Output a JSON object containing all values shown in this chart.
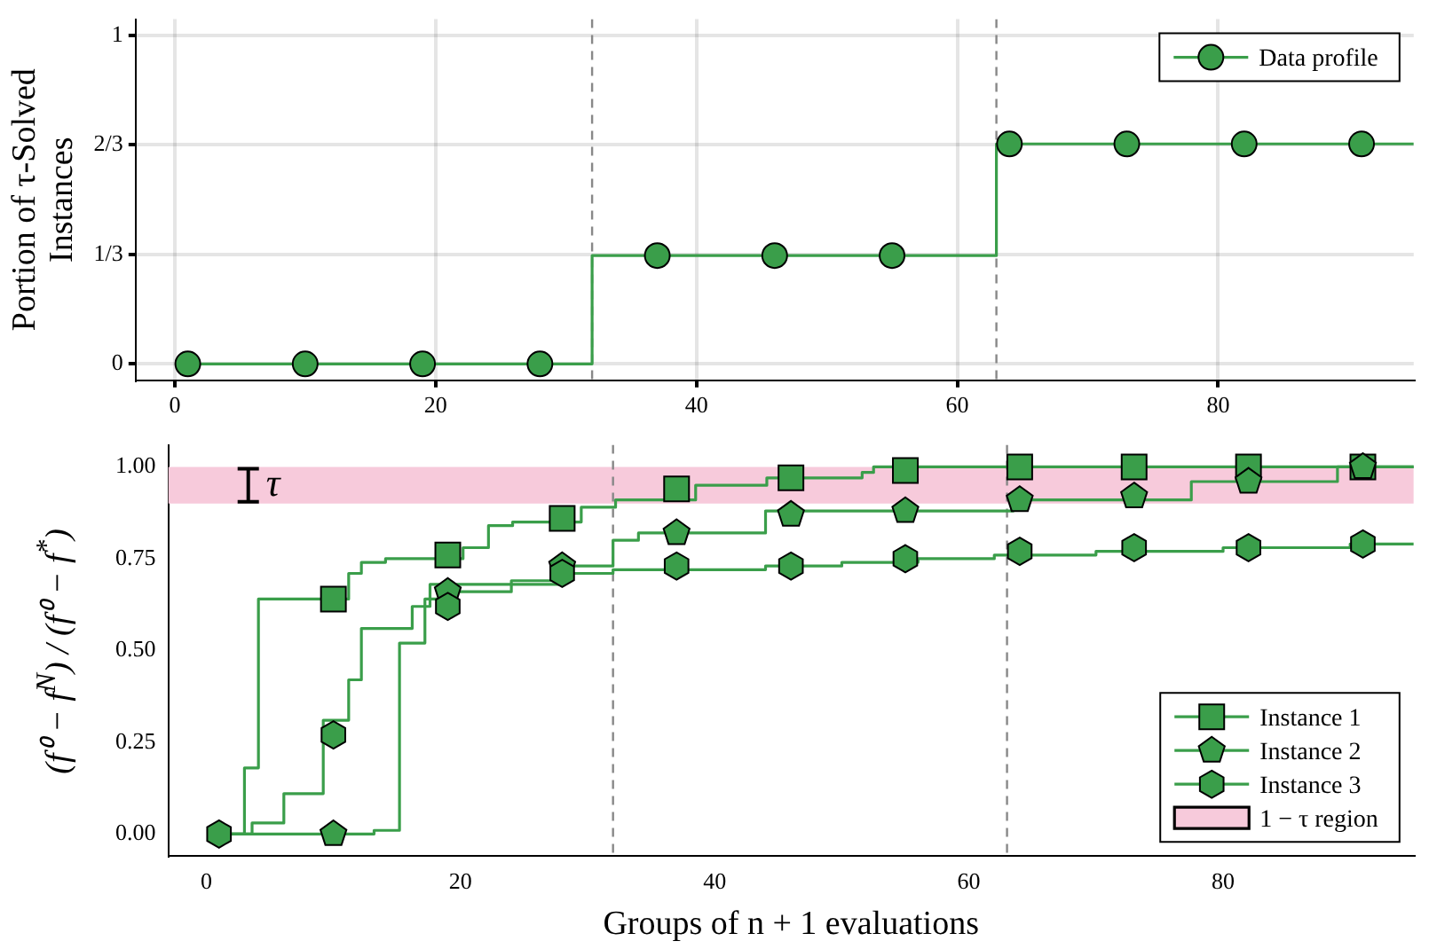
{
  "chart_data": [
    {
      "type": "step",
      "ylabel": "Portion of τ-Solved Instances",
      "xlim": [
        -3,
        95
      ],
      "xticks": [
        0,
        20,
        40,
        60,
        80
      ],
      "ylim": [
        -0.05,
        1.05
      ],
      "yticks": [
        0,
        {
          "value": 0.3333,
          "label": "1/3"
        },
        {
          "value": 0.6667,
          "label": "2/3"
        },
        1
      ],
      "grid": true,
      "legend": "top right",
      "ref_lines": [
        {
          "axis": "x",
          "value": 32,
          "color": "#888888",
          "line_style": "dashed"
        },
        {
          "axis": "x",
          "value": 63,
          "color": "#888888",
          "line_style": "dashed"
        }
      ],
      "series": [
        {
          "color": "#3a9e4a",
          "marker": "none",
          "x": [
            1,
            32,
            63,
            95
          ],
          "values": [
            0,
            0.33,
            0.67,
            0.67
          ]
        },
        {
          "type": "scatter",
          "name": "Data profile",
          "color": "#3a9e4a",
          "marker": "circle",
          "x": [
            1,
            10,
            19,
            28,
            37,
            46,
            55,
            64,
            73,
            82,
            91
          ],
          "values": [
            0,
            0,
            0,
            0,
            0.33,
            0.33,
            0.33,
            0.67,
            0.67,
            0.67,
            0.67
          ]
        }
      ]
    },
    {
      "type": "step",
      "xlabel": "Groups of n + 1 evaluations",
      "ylabel": "(f⁰ − f$^{N}$) / (f⁰ − f$^{*}$)",
      "xlim": [
        -3,
        95
      ],
      "xticks": [
        0,
        20,
        40,
        60,
        80
      ],
      "ylim": [
        -0.06,
        1.06
      ],
      "yticks": [
        {
          "value": 0,
          "label": "0.00"
        },
        {
          "value": 0.25,
          "label": "0.25"
        },
        {
          "value": 0.5,
          "label": "0.50"
        },
        {
          "value": 0.75,
          "label": "0.75"
        },
        {
          "value": 1,
          "label": "1.00"
        }
      ],
      "legend": "bottom right",
      "ref_lines": [
        {
          "axis": "x",
          "value": 32,
          "color": "#888888",
          "line_style": "dashed"
        },
        {
          "axis": "x",
          "value": 63,
          "color": "#888888",
          "line_style": "dashed"
        }
      ],
      "bands": [
        {
          "axis": "y",
          "from": 0.9,
          "to": 1.0,
          "label": "1 − τ region",
          "color": "#f7cadb"
        }
      ],
      "annotations": [
        {
          "text": "τ",
          "x": 3.3,
          "y": 0.95
        }
      ],
      "series": [
        {
          "color": "#3a9e4a",
          "marker": "none",
          "x": [
            0.3,
            3,
            4.1,
            11.2,
            12.2,
            14.1,
            20.2,
            22.2,
            24.1,
            29.5,
            32.2,
            38.5,
            44.1,
            51.6,
            52.5,
            95
          ],
          "values": [
            0,
            0.18,
            0.64,
            0.71,
            0.74,
            0.75,
            0.78,
            0.84,
            0.85,
            0.89,
            0.91,
            0.95,
            0.97,
            0.985,
            1.0,
            1.0
          ]
        },
        {
          "color": "#3a9e4a",
          "marker": "none",
          "x": [
            0.3,
            13.2,
            15.2,
            17.2,
            19,
            24,
            28,
            32,
            34,
            44,
            63.5,
            77.5,
            89,
            95
          ],
          "values": [
            0,
            0.01,
            0.52,
            0.64,
            0.66,
            0.69,
            0.73,
            0.8,
            0.82,
            0.88,
            0.91,
            0.96,
            1.0,
            1.0
          ]
        },
        {
          "color": "#3a9e4a",
          "marker": "none",
          "x": [
            0.3,
            3.6,
            6.1,
            9.2,
            11.2,
            12.2,
            16.2,
            17.6,
            28,
            32,
            44,
            50,
            56,
            62,
            70,
            80,
            90,
            95
          ],
          "values": [
            0,
            0.03,
            0.11,
            0.31,
            0.42,
            0.56,
            0.62,
            0.68,
            0.71,
            0.72,
            0.73,
            0.74,
            0.75,
            0.76,
            0.77,
            0.78,
            0.79,
            0.79
          ]
        },
        {
          "type": "scatter",
          "name": "Instance 1",
          "color": "#3a9e4a",
          "marker": "square",
          "x": [
            10,
            19,
            28,
            37,
            46,
            55,
            64,
            73,
            82,
            91
          ],
          "values": [
            0.64,
            0.76,
            0.86,
            0.94,
            0.97,
            0.99,
            1.0,
            1.0,
            1.0,
            1.0
          ]
        },
        {
          "type": "scatter",
          "name": "Instance 2",
          "color": "#3a9e4a",
          "x": [
            10,
            19,
            28,
            37,
            46,
            55,
            64,
            73,
            82,
            91
          ],
          "values": [
            0,
            0.66,
            0.73,
            0.82,
            0.87,
            0.88,
            0.91,
            0.92,
            0.96,
            1.0
          ]
        },
        {
          "type": "scatter",
          "name": "Instance 3",
          "color": "#3a9e4a",
          "x": [
            1,
            10,
            19,
            28,
            37,
            46,
            55,
            64,
            73,
            82,
            91
          ],
          "values": [
            0,
            0.27,
            0.62,
            0.71,
            0.73,
            0.73,
            0.75,
            0.77,
            0.78,
            0.78,
            0.79
          ]
        }
      ]
    }
  ]
}
